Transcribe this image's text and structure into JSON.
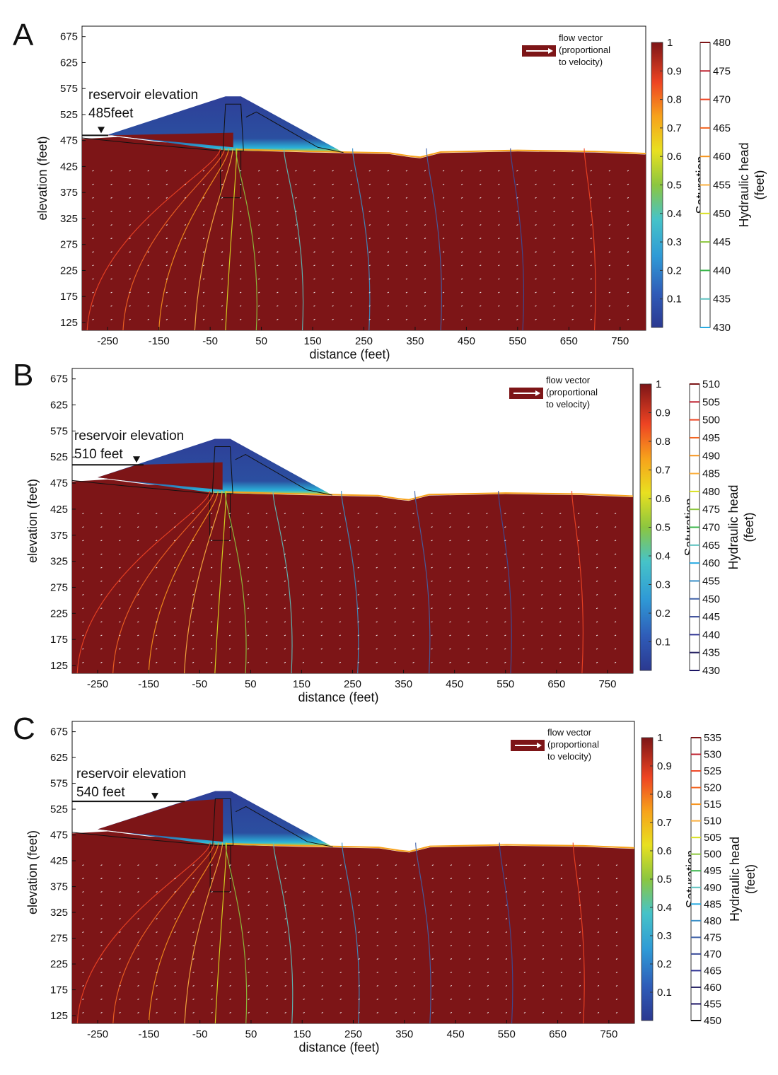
{
  "chart_data": [
    {
      "type": "heatmap",
      "panel": "A",
      "reservoir_label": "reservoir elevation",
      "reservoir_value_label": "485feet",
      "reservoir_elevation": 485,
      "xlabel": "distance (feet)",
      "ylabel": "elevation (feet)",
      "xlim": [
        -300,
        800
      ],
      "ylim": [
        110,
        695
      ],
      "x_ticks": [
        -250,
        -150,
        -50,
        50,
        150,
        250,
        350,
        450,
        550,
        650,
        750
      ],
      "y_ticks": [
        675,
        625,
        575,
        525,
        475,
        425,
        375,
        325,
        275,
        225,
        175,
        125
      ],
      "legend": [
        "flow vector",
        "(proportional",
        "to velocity)"
      ],
      "saturation_label": "Saturation",
      "saturation_ticks": [
        "1",
        "0.9",
        "0.8",
        "0.7",
        "0.6",
        "0.5",
        "0.4",
        "0.3",
        "0.2",
        "0.1"
      ],
      "head_label": [
        "Hydraulic head",
        "(feet)"
      ],
      "head_ticks": [
        "480",
        "475",
        "470",
        "465",
        "460",
        "455",
        "450",
        "445",
        "440",
        "435",
        "430"
      ]
    },
    {
      "type": "heatmap",
      "panel": "B",
      "reservoir_label": "reservoir elevation",
      "reservoir_value_label": "510 feet",
      "reservoir_elevation": 510,
      "xlabel": "distance (feet)",
      "ylabel": "elevation (feet)",
      "xlim": [
        -300,
        800
      ],
      "ylim": [
        110,
        695
      ],
      "x_ticks": [
        -250,
        -150,
        -50,
        50,
        150,
        250,
        350,
        450,
        550,
        650,
        750
      ],
      "y_ticks": [
        675,
        625,
        575,
        525,
        475,
        425,
        375,
        325,
        275,
        225,
        175,
        125
      ],
      "legend": [
        "flow vector",
        "(proportional",
        "to velocity)"
      ],
      "saturation_label": "Saturation",
      "saturation_ticks": [
        "1",
        "0.9",
        "0.8",
        "0.7",
        "0.6",
        "0.5",
        "0.4",
        "0.3",
        "0.2",
        "0.1"
      ],
      "head_label": [
        "Hydraulic head",
        "(feet)"
      ],
      "head_ticks": [
        "510",
        "505",
        "500",
        "495",
        "490",
        "485",
        "480",
        "475",
        "470",
        "465",
        "460",
        "455",
        "450",
        "445",
        "440",
        "435",
        "430"
      ]
    },
    {
      "type": "heatmap",
      "panel": "C",
      "reservoir_label": "reservoir elevation",
      "reservoir_value_label": "540 feet",
      "reservoir_elevation": 540,
      "xlabel": "distance (feet)",
      "ylabel": "elevation (feet)",
      "xlim": [
        -300,
        800
      ],
      "ylim": [
        110,
        695
      ],
      "x_ticks": [
        -250,
        -150,
        -50,
        50,
        150,
        250,
        350,
        450,
        550,
        650,
        750
      ],
      "y_ticks": [
        675,
        625,
        575,
        525,
        475,
        425,
        375,
        325,
        275,
        225,
        175,
        125
      ],
      "legend": [
        "flow vector",
        "(proportional",
        "to velocity)"
      ],
      "saturation_label": "Saturation",
      "saturation_ticks": [
        "1",
        "0.9",
        "0.8",
        "0.7",
        "0.6",
        "0.5",
        "0.4",
        "0.3",
        "0.2",
        "0.1"
      ],
      "head_label": [
        "Hydraulic head",
        "(feet)"
      ],
      "head_ticks": [
        "535",
        "530",
        "525",
        "520",
        "515",
        "510",
        "505",
        "500",
        "495",
        "490",
        "485",
        "480",
        "475",
        "470",
        "465",
        "460",
        "455",
        "450"
      ]
    }
  ],
  "colors": {
    "saturated": "#7d1517",
    "dry": "#2e3f98",
    "plot_bg": "#ffffff"
  }
}
